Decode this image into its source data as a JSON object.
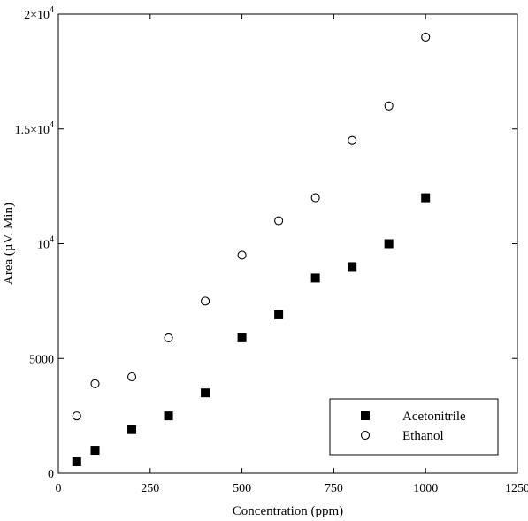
{
  "chart_data": {
    "type": "scatter",
    "xlabel": "Concentration (ppm)",
    "ylabel": "Area (µV. Min)",
    "xlim": [
      0,
      1250
    ],
    "ylim": [
      0,
      20000
    ],
    "x_ticks": [
      0,
      250,
      500,
      750,
      1000,
      1250
    ],
    "x_tick_labels": [
      "0",
      "250",
      "500",
      "750",
      "1000",
      "1250"
    ],
    "y_ticks": [
      {
        "value": 0,
        "mantissa": "0",
        "exponent": ""
      },
      {
        "value": 5000,
        "mantissa": "5000",
        "exponent": ""
      },
      {
        "value": 10000,
        "mantissa": "10",
        "exponent": "4"
      },
      {
        "value": 15000,
        "mantissa": "1.5×10",
        "exponent": "4"
      },
      {
        "value": 20000,
        "mantissa": "2×10",
        "exponent": "4"
      }
    ],
    "grid": false,
    "legend_position": "bottom-right",
    "series": [
      {
        "name": "Acetonitrile",
        "marker": "filled-square",
        "color": "#000000",
        "x": [
          50,
          100,
          200,
          300,
          400,
          500,
          600,
          700,
          800,
          900,
          1000
        ],
        "y": [
          500,
          1000,
          1900,
          2500,
          3500,
          5900,
          6900,
          8500,
          9000,
          10000,
          12000
        ]
      },
      {
        "name": "Ethanol",
        "marker": "open-circle",
        "color": "#000000",
        "x": [
          50,
          100,
          200,
          300,
          400,
          500,
          600,
          700,
          800,
          900,
          1000
        ],
        "y": [
          2500,
          3900,
          4200,
          5900,
          7500,
          9500,
          11000,
          12000,
          14500,
          16000,
          19000
        ]
      }
    ]
  }
}
